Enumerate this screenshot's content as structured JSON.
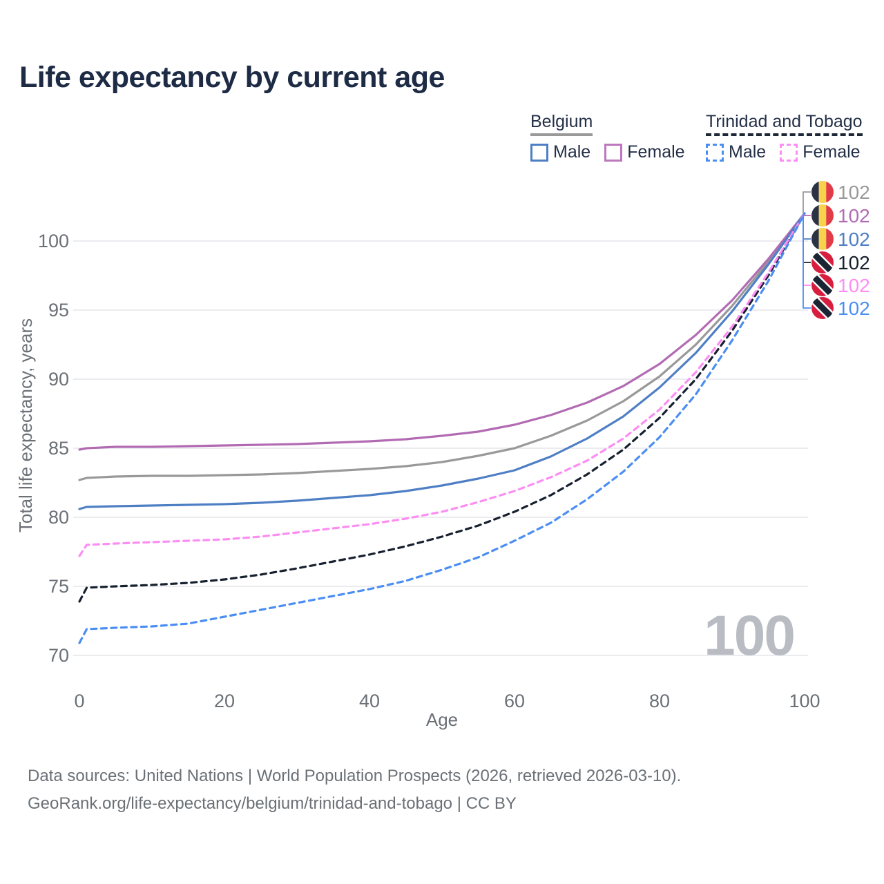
{
  "title": "Life expectancy by current age",
  "legend": {
    "groups": [
      {
        "country": "Belgium",
        "line_style": "solid",
        "underline_color": "#999999",
        "items": [
          {
            "label": "Male",
            "color": "#4e7fc4"
          },
          {
            "label": "Female",
            "color": "#bd77bd"
          }
        ]
      },
      {
        "country": "Trinidad and Tobago",
        "line_style": "dashed",
        "underline_color": "#1e2737",
        "items": [
          {
            "label": "Male",
            "color": "#4b8ef2"
          },
          {
            "label": "Female",
            "color": "#fc8df3"
          }
        ]
      }
    ]
  },
  "watermark": "100",
  "chart_data": {
    "type": "line",
    "title": "Life expectancy by current age",
    "xlabel": "Age",
    "ylabel": "Total life expectancy, years",
    "xlim": [
      0,
      100
    ],
    "ylim": [
      70,
      102.6
    ],
    "xticks": [
      0,
      20,
      40,
      60,
      80,
      100
    ],
    "yticks": [
      70,
      75,
      80,
      85,
      90,
      95,
      100
    ],
    "grid": "horizontal",
    "legend_position": "top-right",
    "x": [
      0,
      1,
      5,
      10,
      15,
      20,
      25,
      30,
      35,
      40,
      45,
      50,
      55,
      60,
      65,
      70,
      75,
      80,
      85,
      90,
      95,
      100
    ],
    "series": [
      {
        "id": "belgium-combined",
        "country": "Belgium",
        "group": "combined",
        "color": "#999999",
        "dash": false,
        "values": [
          82.7,
          82.85,
          82.95,
          83.0,
          83.0,
          83.05,
          83.1,
          83.2,
          83.35,
          83.5,
          83.7,
          84.0,
          84.45,
          85.0,
          85.9,
          87.0,
          88.4,
          90.2,
          92.5,
          95.3,
          98.5,
          102
        ]
      },
      {
        "id": "belgium-female",
        "country": "Belgium",
        "group": "Female",
        "color": "#b26bb2",
        "dash": false,
        "values": [
          84.9,
          85.0,
          85.1,
          85.1,
          85.15,
          85.2,
          85.25,
          85.3,
          85.4,
          85.5,
          85.65,
          85.9,
          86.2,
          86.7,
          87.4,
          88.3,
          89.5,
          91.1,
          93.2,
          95.7,
          98.7,
          102
        ]
      },
      {
        "id": "belgium-male",
        "country": "Belgium",
        "group": "Male",
        "color": "#4e7fc4",
        "dash": false,
        "values": [
          80.6,
          80.75,
          80.8,
          80.85,
          80.9,
          80.95,
          81.05,
          81.2,
          81.4,
          81.6,
          81.9,
          82.3,
          82.8,
          83.4,
          84.4,
          85.7,
          87.3,
          89.4,
          91.9,
          94.9,
          98.3,
          102
        ]
      },
      {
        "id": "trinidad-and-tobago-combined",
        "country": "Trinidad and Tobago",
        "group": "combined",
        "color": "#17202f",
        "dash": true,
        "values": [
          73.9,
          74.9,
          75.0,
          75.1,
          75.25,
          75.5,
          75.85,
          76.3,
          76.8,
          77.3,
          77.9,
          78.6,
          79.4,
          80.4,
          81.6,
          83.1,
          84.9,
          87.2,
          90.0,
          93.5,
          97.5,
          102
        ]
      },
      {
        "id": "trinidad-and-tobago-female",
        "country": "Trinidad and Tobago",
        "group": "Female",
        "color": "#fc8df3",
        "dash": true,
        "values": [
          77.2,
          78.0,
          78.1,
          78.2,
          78.3,
          78.4,
          78.6,
          78.9,
          79.2,
          79.5,
          79.9,
          80.4,
          81.1,
          81.9,
          82.9,
          84.1,
          85.7,
          87.8,
          90.5,
          93.8,
          97.7,
          102
        ]
      },
      {
        "id": "trinidad-and-tobago-male",
        "country": "Trinidad and Tobago",
        "group": "Male",
        "color": "#4b8ef2",
        "dash": true,
        "values": [
          70.9,
          71.9,
          72.0,
          72.1,
          72.3,
          72.8,
          73.3,
          73.8,
          74.3,
          74.8,
          75.4,
          76.2,
          77.1,
          78.3,
          79.6,
          81.3,
          83.3,
          85.8,
          88.9,
          92.8,
          97.1,
          102
        ]
      }
    ],
    "end_labels": [
      {
        "flag": "belgium",
        "value": "102",
        "color": "#999999"
      },
      {
        "flag": "belgium",
        "value": "102",
        "color": "#b26bb2"
      },
      {
        "flag": "belgium",
        "value": "102",
        "color": "#4e7fc4"
      },
      {
        "flag": "trinidad-and-tobago",
        "value": "102",
        "color": "#17202f"
      },
      {
        "flag": "trinidad-and-tobago",
        "value": "102",
        "color": "#fc8df3"
      },
      {
        "flag": "trinidad-and-tobago",
        "value": "102",
        "color": "#4b8ef2"
      }
    ]
  },
  "footer": {
    "line1": "Data sources: United Nations | World Population Prospects (2026, retrieved 2026-03-10).",
    "line2": "GeoRank.org/life-expectancy/belgium/trinidad-and-tobago | CC BY"
  }
}
